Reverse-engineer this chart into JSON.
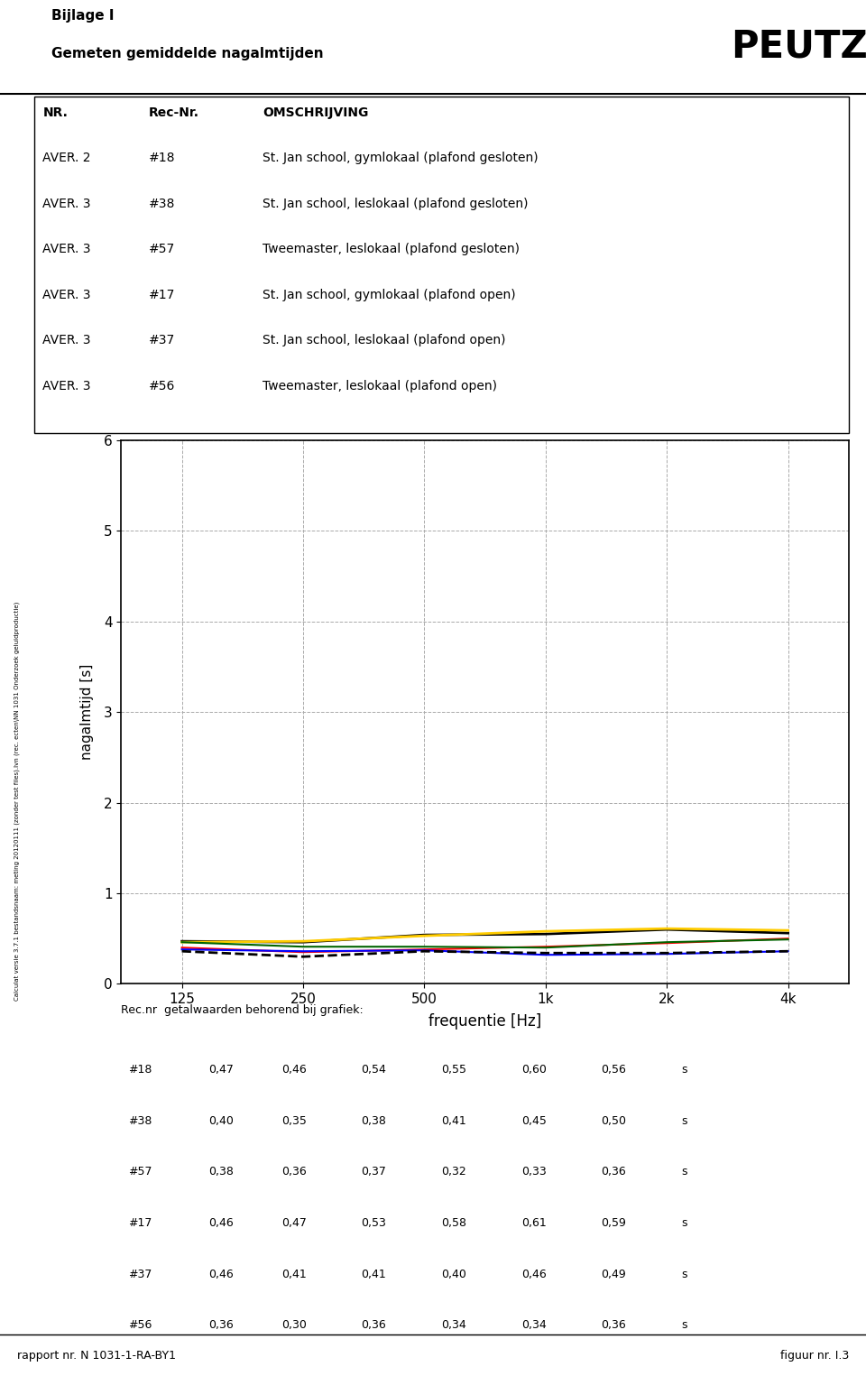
{
  "title_line1": "Bijlage I",
  "title_line2": "Gemeten gemiddelde nagalmtijden",
  "table_header": [
    "NR.",
    "Rec-Nr.",
    "OMSCHRIJVING"
  ],
  "table_rows": [
    [
      "AVER. 2",
      "#18",
      "St. Jan school, gymlokaal (plafond gesloten)"
    ],
    [
      "AVER. 3",
      "#38",
      "St. Jan school, leslokaal (plafond gesloten)"
    ],
    [
      "AVER. 3",
      "#57",
      "Tweemaster, leslokaal (plafond gesloten)"
    ],
    [
      "AVER. 3",
      "#17",
      "St. Jan school, gymlokaal (plafond open)"
    ],
    [
      "AVER. 3",
      "#37",
      "St. Jan school, leslokaal (plafond open)"
    ],
    [
      "AVER. 3",
      "#56",
      "Tweemaster, leslokaal (plafond open)"
    ]
  ],
  "freq_labels": [
    "125",
    "250",
    "500",
    "1k",
    "2k",
    "4k"
  ],
  "series": [
    {
      "label": "#18",
      "color": "#000000",
      "linestyle": "-",
      "linewidth": 2.0,
      "values": [
        0.47,
        0.46,
        0.54,
        0.55,
        0.6,
        0.56
      ]
    },
    {
      "label": "#38",
      "color": "#ff0000",
      "linestyle": "-",
      "linewidth": 1.5,
      "values": [
        0.4,
        0.35,
        0.38,
        0.41,
        0.45,
        0.5
      ]
    },
    {
      "label": "#57",
      "color": "#0000ff",
      "linestyle": "-",
      "linewidth": 1.5,
      "values": [
        0.38,
        0.36,
        0.37,
        0.32,
        0.33,
        0.36
      ]
    },
    {
      "label": "#17",
      "color": "#ffcc00",
      "linestyle": "-",
      "linewidth": 2.0,
      "values": [
        0.46,
        0.47,
        0.53,
        0.58,
        0.61,
        0.59
      ]
    },
    {
      "label": "#37",
      "color": "#006400",
      "linestyle": "-",
      "linewidth": 1.5,
      "values": [
        0.46,
        0.41,
        0.41,
        0.4,
        0.46,
        0.49
      ]
    },
    {
      "label": "#56",
      "color": "#000000",
      "linestyle": "--",
      "linewidth": 2.0,
      "values": [
        0.36,
        0.3,
        0.36,
        0.34,
        0.34,
        0.36
      ]
    }
  ],
  "ylabel": "nagalmtijd [s]",
  "xlabel": "frequentie [Hz]",
  "ylim": [
    0,
    6
  ],
  "yticks": [
    0,
    1,
    2,
    3,
    4,
    5,
    6
  ],
  "table_values_header": "Rec.nr  getalwaarden behorend bij grafiek:",
  "table_values": [
    [
      "#18",
      "0,47",
      "0,46",
      "0,54",
      "0,55",
      "0,60",
      "0,56",
      "s"
    ],
    [
      "#38",
      "0,40",
      "0,35",
      "0,38",
      "0,41",
      "0,45",
      "0,50",
      "s"
    ],
    [
      "#57",
      "0,38",
      "0,36",
      "0,37",
      "0,32",
      "0,33",
      "0,36",
      "s"
    ],
    [
      "#17",
      "0,46",
      "0,47",
      "0,53",
      "0,58",
      "0,61",
      "0,59",
      "s"
    ],
    [
      "#37",
      "0,46",
      "0,41",
      "0,41",
      "0,40",
      "0,46",
      "0,49",
      "s"
    ],
    [
      "#56",
      "0,36",
      "0,30",
      "0,36",
      "0,34",
      "0,34",
      "0,36",
      "s"
    ]
  ],
  "footer_left": "rapport nr. N 1031-1-RA-BY1",
  "footer_right": "figuur nr. I.3",
  "sidebar_text": "Calculat versie 3.7.1 bestandsnaam: meting 20120111 (zonder test files).lvn (rec. ecten\\NN 1031 Onderzoek geluidproductie)",
  "background_color": "#ffffff"
}
